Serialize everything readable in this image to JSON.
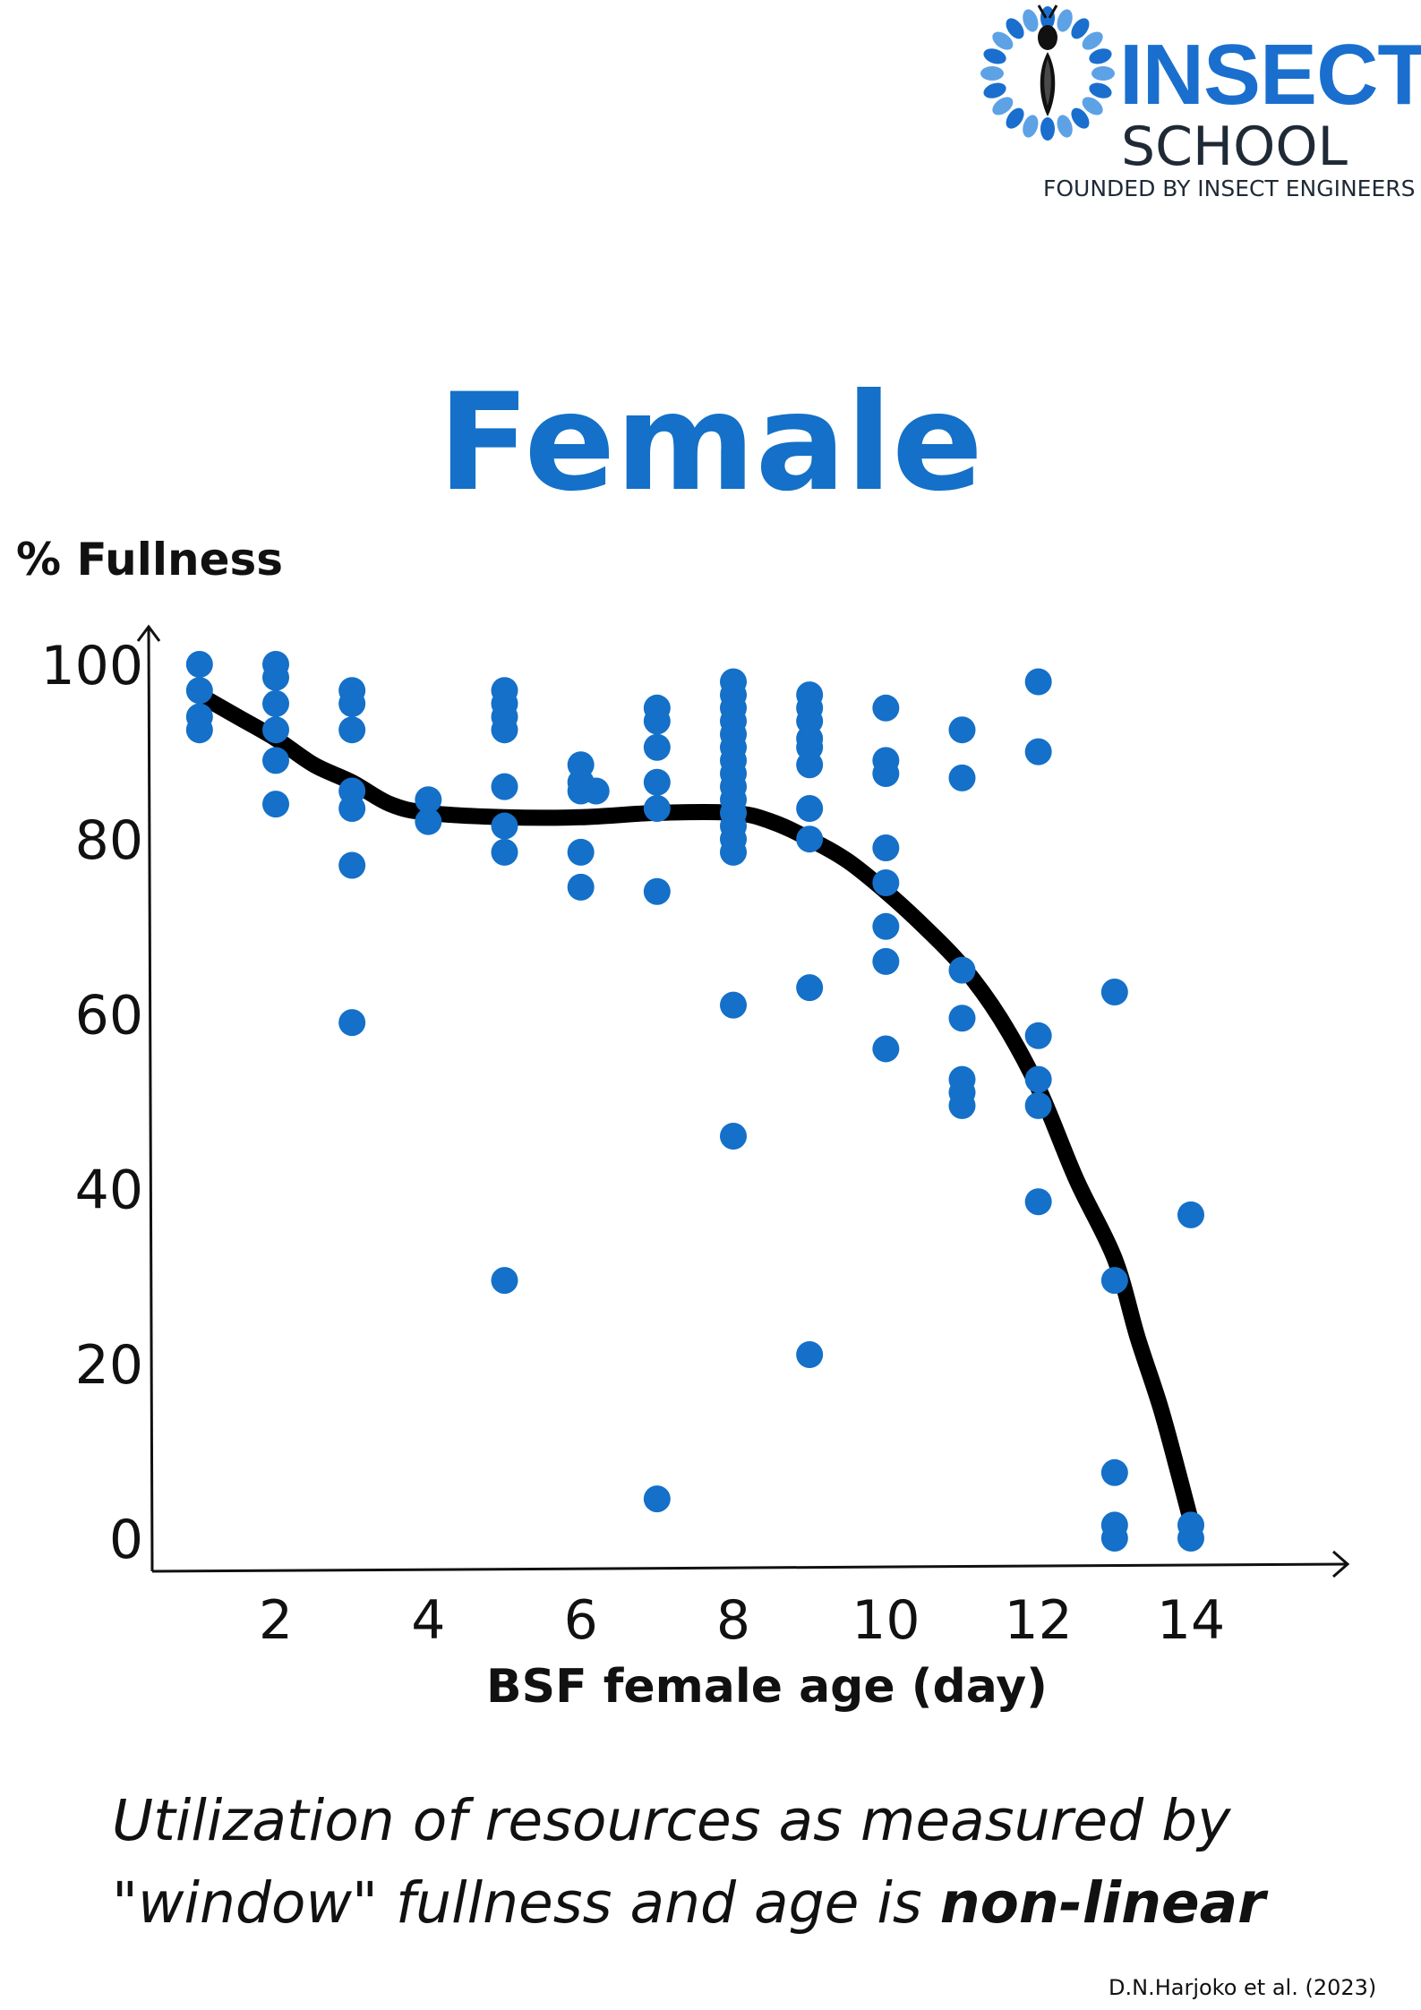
{
  "logo": {
    "name": "INSECT",
    "subtitle": "SCHOOL",
    "tagline": "FOUNDED BY INSECT ENGINEERS",
    "brand_color": "#1a6fce",
    "icon": "insect-sunburst-logo-icon"
  },
  "chart_data": {
    "type": "scatter",
    "title": "Female",
    "xlabel": "BSF female age (day)",
    "ylabel": "% Fullness",
    "x_ticks": [
      2,
      4,
      6,
      8,
      10,
      12,
      14
    ],
    "y_ticks": [
      0,
      20,
      40,
      60,
      80,
      100
    ],
    "xlim": [
      0,
      16
    ],
    "ylim": [
      -3,
      104
    ],
    "grid": false,
    "legend": "none",
    "point_color": "#1470c8",
    "curve_color": "#000000",
    "points": [
      [
        1,
        100
      ],
      [
        1,
        97
      ],
      [
        1,
        94
      ],
      [
        1,
        92.5
      ],
      [
        2,
        100
      ],
      [
        2,
        98.5
      ],
      [
        2,
        95.5
      ],
      [
        2,
        92.5
      ],
      [
        2,
        89
      ],
      [
        2,
        84
      ],
      [
        3,
        97
      ],
      [
        3,
        95.5
      ],
      [
        3,
        92.5
      ],
      [
        3,
        85.5
      ],
      [
        3,
        83.5
      ],
      [
        3,
        77
      ],
      [
        3,
        59
      ],
      [
        4,
        84.5
      ],
      [
        4,
        82
      ],
      [
        5,
        97
      ],
      [
        5,
        95.5
      ],
      [
        5,
        94
      ],
      [
        5,
        92.5
      ],
      [
        5,
        86
      ],
      [
        5,
        81.5
      ],
      [
        5,
        78.5
      ],
      [
        5,
        29.5
      ],
      [
        6,
        88.5
      ],
      [
        6,
        86.5
      ],
      [
        6,
        85.5
      ],
      [
        6,
        78.5
      ],
      [
        6,
        74.5
      ],
      [
        6.2,
        85.5
      ],
      [
        7,
        95
      ],
      [
        7,
        93.5
      ],
      [
        7,
        90.5
      ],
      [
        7,
        86.5
      ],
      [
        7,
        83.5
      ],
      [
        7,
        74
      ],
      [
        7,
        4.5
      ],
      [
        8,
        98
      ],
      [
        8,
        96.5
      ],
      [
        8,
        95
      ],
      [
        8,
        93.5
      ],
      [
        8,
        92
      ],
      [
        8,
        90.5
      ],
      [
        8,
        89
      ],
      [
        8,
        87.5
      ],
      [
        8,
        86
      ],
      [
        8,
        84.5
      ],
      [
        8,
        83
      ],
      [
        8,
        81.5
      ],
      [
        8,
        80
      ],
      [
        8,
        78.5
      ],
      [
        8,
        61
      ],
      [
        8,
        46
      ],
      [
        9,
        96.5
      ],
      [
        9,
        95
      ],
      [
        9,
        93.5
      ],
      [
        9,
        91.5
      ],
      [
        9,
        90.5
      ],
      [
        9,
        88.5
      ],
      [
        9,
        83.5
      ],
      [
        9,
        80
      ],
      [
        9,
        63
      ],
      [
        9,
        21
      ],
      [
        10,
        95
      ],
      [
        10,
        89
      ],
      [
        10,
        87.5
      ],
      [
        10,
        79
      ],
      [
        10,
        75
      ],
      [
        10,
        70
      ],
      [
        10,
        66
      ],
      [
        10,
        56
      ],
      [
        11,
        92.5
      ],
      [
        11,
        87
      ],
      [
        11,
        65
      ],
      [
        11,
        59.5
      ],
      [
        11,
        52.5
      ],
      [
        11,
        51
      ],
      [
        11,
        49.5
      ],
      [
        12,
        98
      ],
      [
        12,
        90
      ],
      [
        12,
        57.5
      ],
      [
        12,
        52.5
      ],
      [
        12,
        49.5
      ],
      [
        12,
        38.5
      ],
      [
        13,
        62.5
      ],
      [
        13,
        29.5
      ],
      [
        13,
        7.5
      ],
      [
        13,
        1.5
      ],
      [
        13,
        0
      ],
      [
        14,
        37
      ],
      [
        14,
        1.5
      ],
      [
        14,
        0
      ]
    ],
    "trend_line": [
      [
        1,
        96.5
      ],
      [
        1.5,
        94
      ],
      [
        2,
        91.5
      ],
      [
        2.5,
        88.5
      ],
      [
        3,
        86.5
      ],
      [
        3.5,
        84
      ],
      [
        4,
        83
      ],
      [
        5,
        82.5
      ],
      [
        6,
        82.5
      ],
      [
        7,
        83
      ],
      [
        8,
        83
      ],
      [
        8.5,
        82
      ],
      [
        9,
        80
      ],
      [
        9.5,
        77.5
      ],
      [
        10,
        74
      ],
      [
        10.5,
        70
      ],
      [
        11,
        65.5
      ],
      [
        11.5,
        59.5
      ],
      [
        12,
        51.5
      ],
      [
        12.5,
        41
      ],
      [
        13,
        32
      ],
      [
        13.3,
        23
      ],
      [
        13.6,
        15
      ],
      [
        13.85,
        7
      ],
      [
        14,
        2
      ]
    ]
  },
  "caption": {
    "text": "Utilization of resources as measured by \"window\" fullness and age is ",
    "emphasis": "non-linear"
  },
  "citation": "D.N.Harjoko et al. (2023)"
}
